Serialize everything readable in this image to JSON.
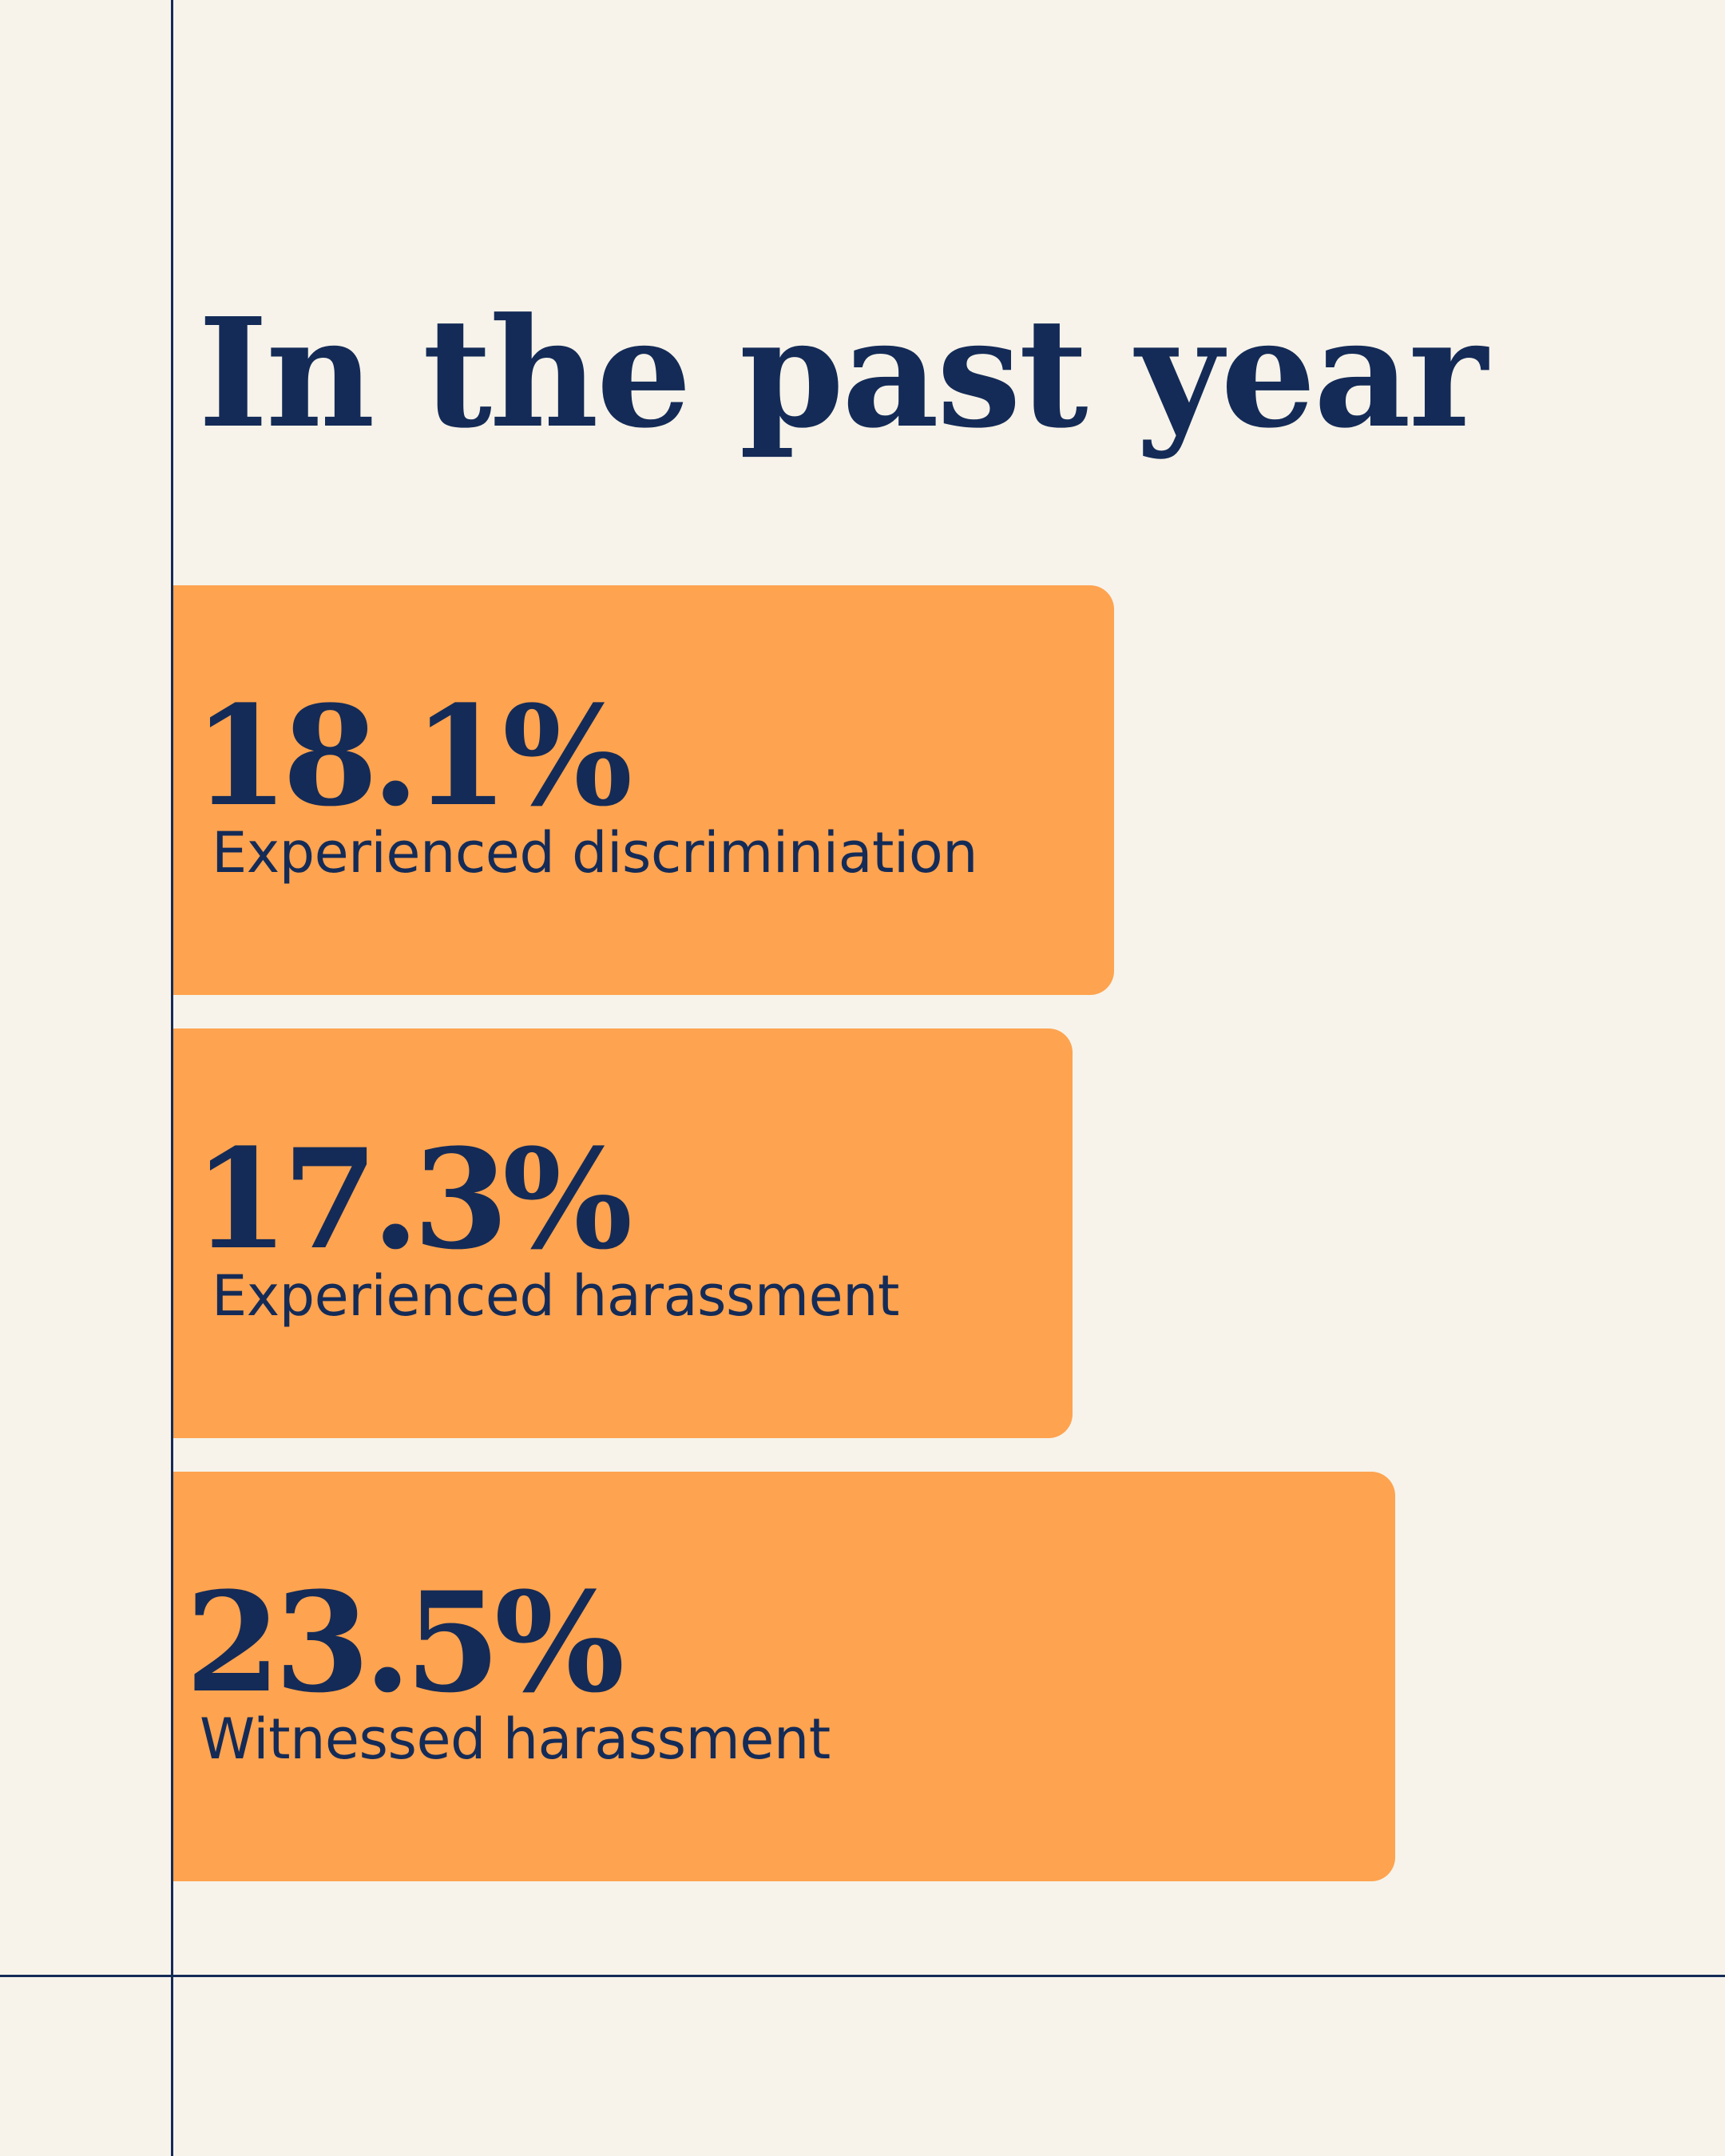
{
  "title": "In the past year",
  "colors": {
    "background": "#f7f3ea",
    "bar": "#fea34f",
    "text": "#142b57",
    "axis": "#142b57"
  },
  "chart_data": {
    "type": "bar",
    "orientation": "horizontal",
    "title": "In the past year",
    "categories": [
      "Experienced discriminiation",
      "Experienced harassment",
      "Witnessed harassment"
    ],
    "values": [
      18.1,
      17.3,
      23.5
    ],
    "value_labels": [
      "18.1%",
      "17.3%",
      "23.5%"
    ],
    "unit": "%",
    "grid": false,
    "legend": "none"
  }
}
